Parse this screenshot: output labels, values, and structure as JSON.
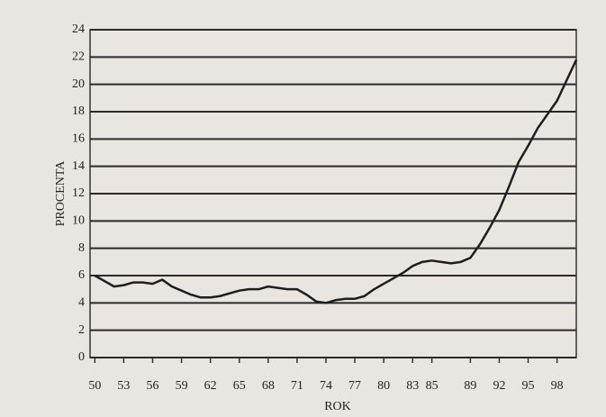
{
  "chart_data": {
    "type": "line",
    "x_label": "ROK",
    "y_label": "PROCENTA",
    "x": [
      50,
      51,
      52,
      53,
      54,
      55,
      56,
      57,
      58,
      59,
      60,
      61,
      62,
      63,
      64,
      65,
      66,
      67,
      68,
      69,
      70,
      71,
      72,
      73,
      74,
      75,
      76,
      77,
      78,
      79,
      80,
      81,
      82,
      83,
      84,
      85,
      86,
      87,
      88,
      89,
      90,
      91,
      92,
      93,
      94,
      95,
      96,
      97,
      98,
      99,
      100
    ],
    "series": [
      {
        "color": "#1e1e1e",
        "values": [
          6.0,
          5.6,
          5.2,
          5.3,
          5.5,
          5.5,
          5.4,
          5.7,
          5.2,
          4.9,
          4.6,
          4.4,
          4.4,
          4.5,
          4.7,
          4.9,
          5.0,
          5.0,
          5.2,
          5.1,
          5.0,
          5.0,
          4.6,
          4.1,
          4.0,
          4.2,
          4.3,
          4.3,
          4.5,
          5.0,
          5.4,
          5.8,
          6.2,
          6.7,
          7.0,
          7.1,
          7.0,
          6.9,
          7.0,
          7.3,
          8.3,
          9.5,
          10.8,
          12.5,
          14.3,
          15.5,
          16.8,
          17.8,
          18.8,
          20.3,
          21.8
        ]
      }
    ],
    "xlim": [
      49.5,
      100
    ],
    "xticks": [
      50,
      53,
      56,
      59,
      62,
      65,
      68,
      71,
      74,
      77,
      80,
      83,
      85,
      89,
      92,
      95,
      98
    ],
    "ylim": [
      0,
      24
    ],
    "yticks": [
      0,
      2,
      4,
      6,
      8,
      10,
      12,
      14,
      16,
      18,
      20,
      22,
      24
    ],
    "grid": true
  }
}
